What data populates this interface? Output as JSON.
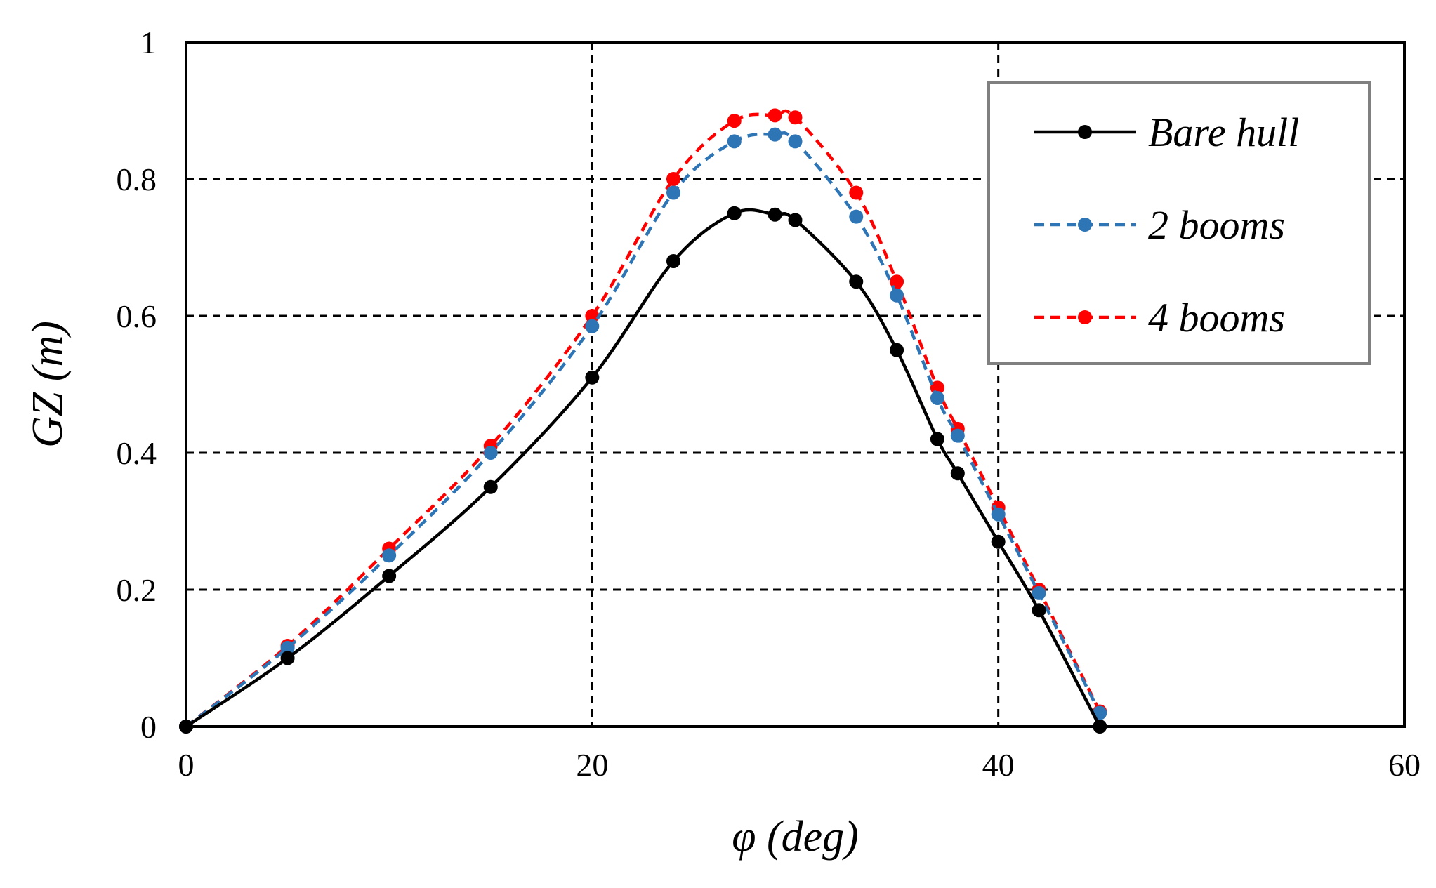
{
  "chart_data": {
    "type": "line",
    "title": "",
    "xlabel": "φ (deg)",
    "ylabel": "GZ (m)",
    "xlim": [
      0,
      60
    ],
    "ylim": [
      0,
      1
    ],
    "x_ticks": [
      0,
      20,
      40,
      60
    ],
    "y_ticks": [
      0,
      0.2,
      0.4,
      0.6,
      0.8,
      1
    ],
    "x_tick_labels": [
      "0",
      "20",
      "40",
      "60"
    ],
    "y_tick_labels": [
      "0",
      "0.2",
      "0.4",
      "0.6",
      "0.8",
      "1"
    ],
    "x_grid_lines": [
      20,
      40
    ],
    "y_grid_lines": [
      0.2,
      0.4,
      0.6,
      0.8
    ],
    "grid": true,
    "legend_position": "top-right",
    "series": [
      {
        "name": "Bare hull",
        "color": "#000000",
        "dash": "solid",
        "points": [
          [
            0,
            0
          ],
          [
            5,
            0.1
          ],
          [
            10,
            0.22
          ],
          [
            15,
            0.35
          ],
          [
            20,
            0.51
          ],
          [
            24,
            0.68
          ],
          [
            27,
            0.75
          ],
          [
            29,
            0.748
          ],
          [
            30,
            0.74
          ],
          [
            33,
            0.65
          ],
          [
            35,
            0.55
          ],
          [
            37,
            0.42
          ],
          [
            38,
            0.37
          ],
          [
            40,
            0.27
          ],
          [
            42,
            0.17
          ],
          [
            45,
            0
          ]
        ]
      },
      {
        "name": "2 booms",
        "color": "#2e75b6",
        "dash": "dashed",
        "points": [
          [
            0,
            0
          ],
          [
            5,
            0.115
          ],
          [
            10,
            0.25
          ],
          [
            15,
            0.4
          ],
          [
            20,
            0.585
          ],
          [
            24,
            0.78
          ],
          [
            27,
            0.855
          ],
          [
            29,
            0.865
          ],
          [
            30,
            0.855
          ],
          [
            33,
            0.745
          ],
          [
            35,
            0.63
          ],
          [
            37,
            0.48
          ],
          [
            38,
            0.425
          ],
          [
            40,
            0.31
          ],
          [
            42,
            0.195
          ],
          [
            45,
            0.02
          ]
        ]
      },
      {
        "name": "4 booms",
        "color": "#ff0000",
        "dash": "dashed",
        "points": [
          [
            0,
            0
          ],
          [
            5,
            0.118
          ],
          [
            10,
            0.26
          ],
          [
            15,
            0.41
          ],
          [
            20,
            0.6
          ],
          [
            24,
            0.8
          ],
          [
            27,
            0.885
          ],
          [
            29,
            0.893
          ],
          [
            30,
            0.89
          ],
          [
            33,
            0.78
          ],
          [
            35,
            0.65
          ],
          [
            37,
            0.495
          ],
          [
            38,
            0.435
          ],
          [
            40,
            0.32
          ],
          [
            42,
            0.2
          ],
          [
            45,
            0.022
          ]
        ]
      }
    ]
  }
}
